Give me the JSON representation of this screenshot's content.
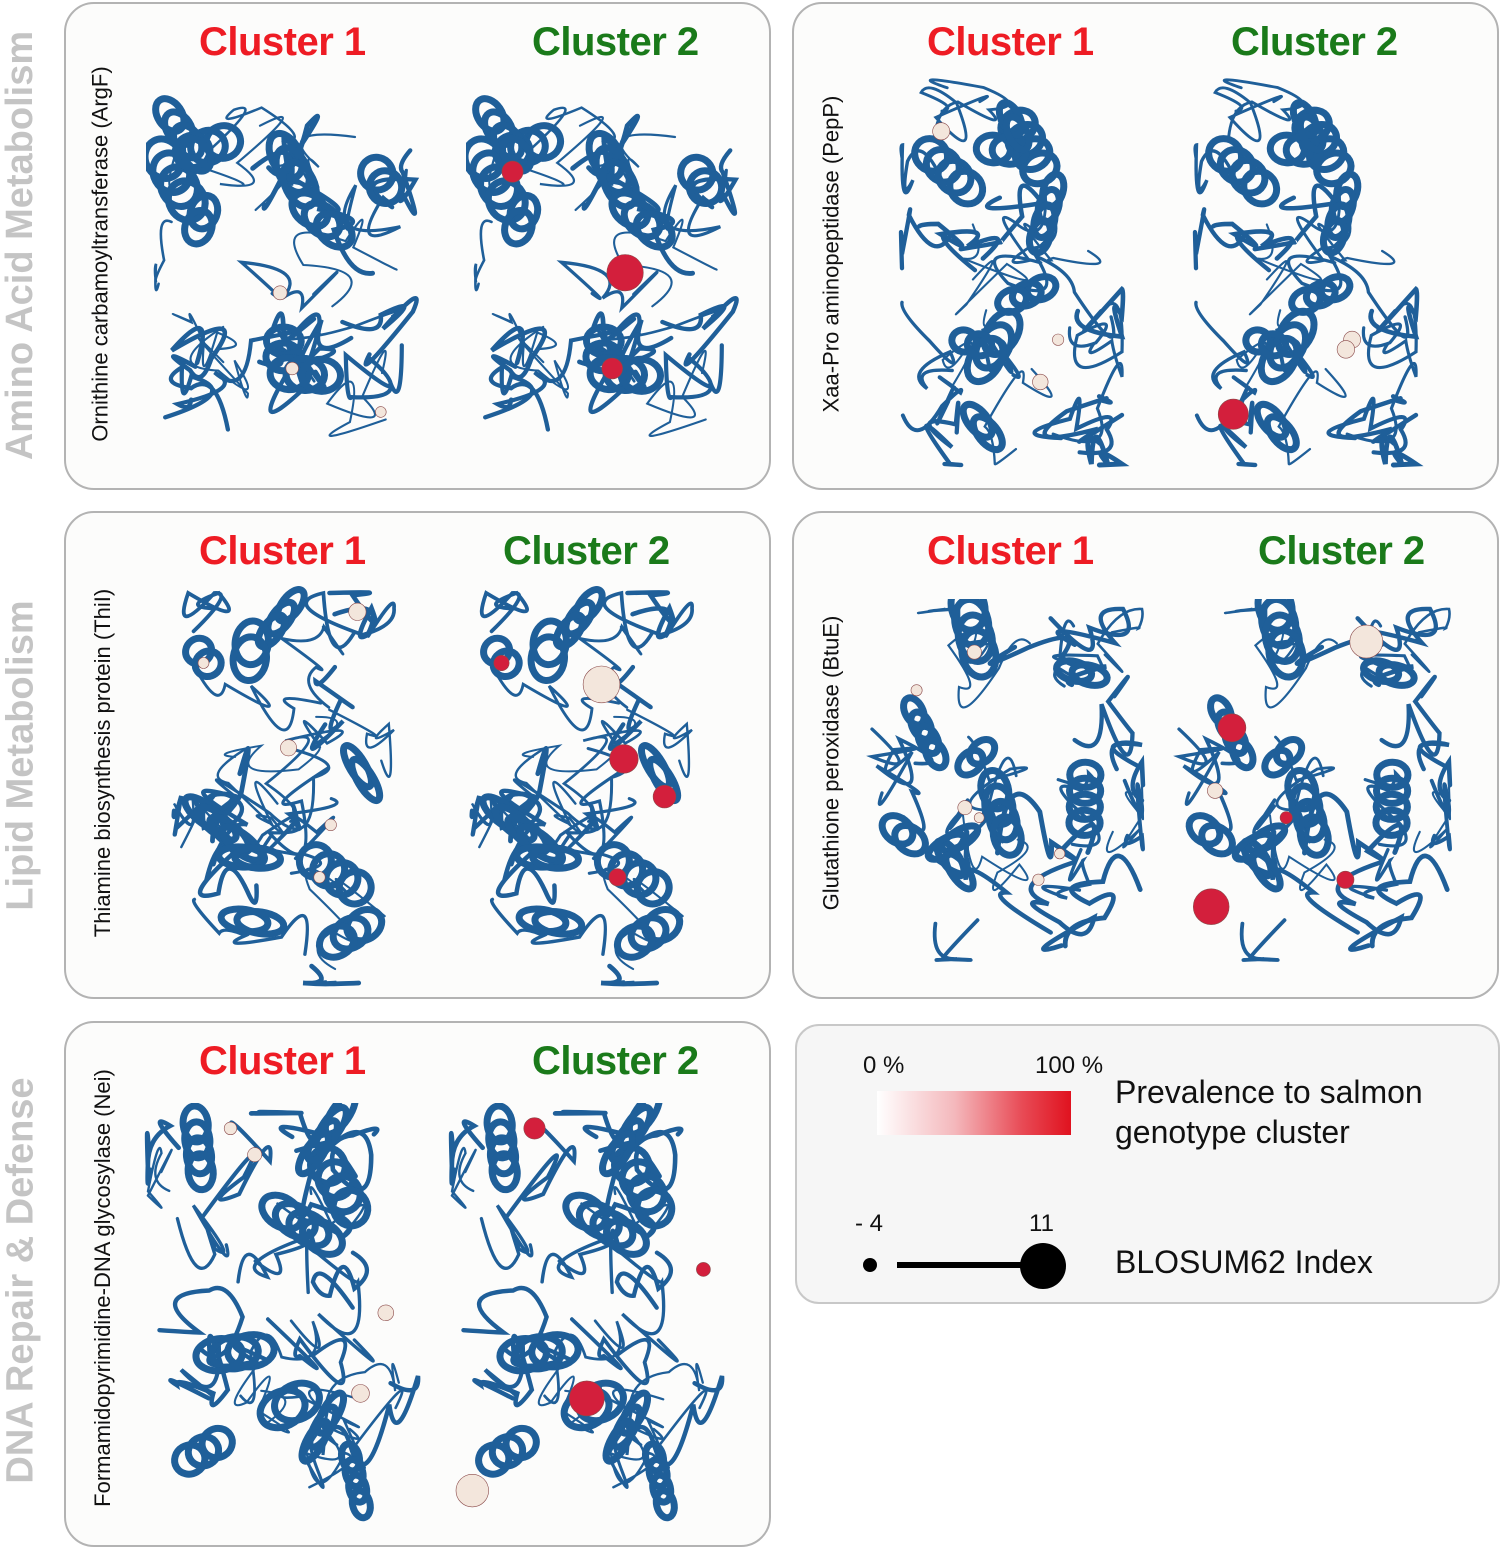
{
  "categories": [
    {
      "label": "Amino Acid Metabolism"
    },
    {
      "label": "Lipid Metabolism"
    },
    {
      "label": "DNA Repair & Defense"
    }
  ],
  "panels": [
    {
      "enzyme": "Ornithine carbamoyltransferase (ArgF)",
      "cluster1": "Cluster 1",
      "cluster2": "Cluster 2"
    },
    {
      "enzyme": "Xaa-Pro aminopeptidase (PepP)",
      "cluster1": "Cluster 1",
      "cluster2": "Cluster 2"
    },
    {
      "enzyme": "Thiamine biosynthesis protein (ThiI)",
      "cluster1": "Cluster 1",
      "cluster2": "Cluster 2"
    },
    {
      "enzyme": "Glutathione peroxidase (BtuE)",
      "cluster1": "Cluster 1",
      "cluster2": "Cluster 2"
    },
    {
      "enzyme": "Formamidopyrimidine-DNA glycosylase (Nei)",
      "cluster1": "Cluster 1",
      "cluster2": "Cluster 2"
    }
  ],
  "legend": {
    "gradient_min": "0 %",
    "gradient_max": "100 %",
    "prevalence_line1": "Prevalence to salmon",
    "prevalence_line2": "genotype cluster",
    "blosum_min": "- 4",
    "blosum_max": "11",
    "blosum_label": "BLOSUM62 Index"
  },
  "colors": {
    "protein": "#1f5f99",
    "cluster1": "#ee1c24",
    "cluster2": "#1a7a1a",
    "category": "#c4c4c4",
    "sphere_low": "#f3e6dc",
    "sphere_high": "#d31f3c"
  }
}
